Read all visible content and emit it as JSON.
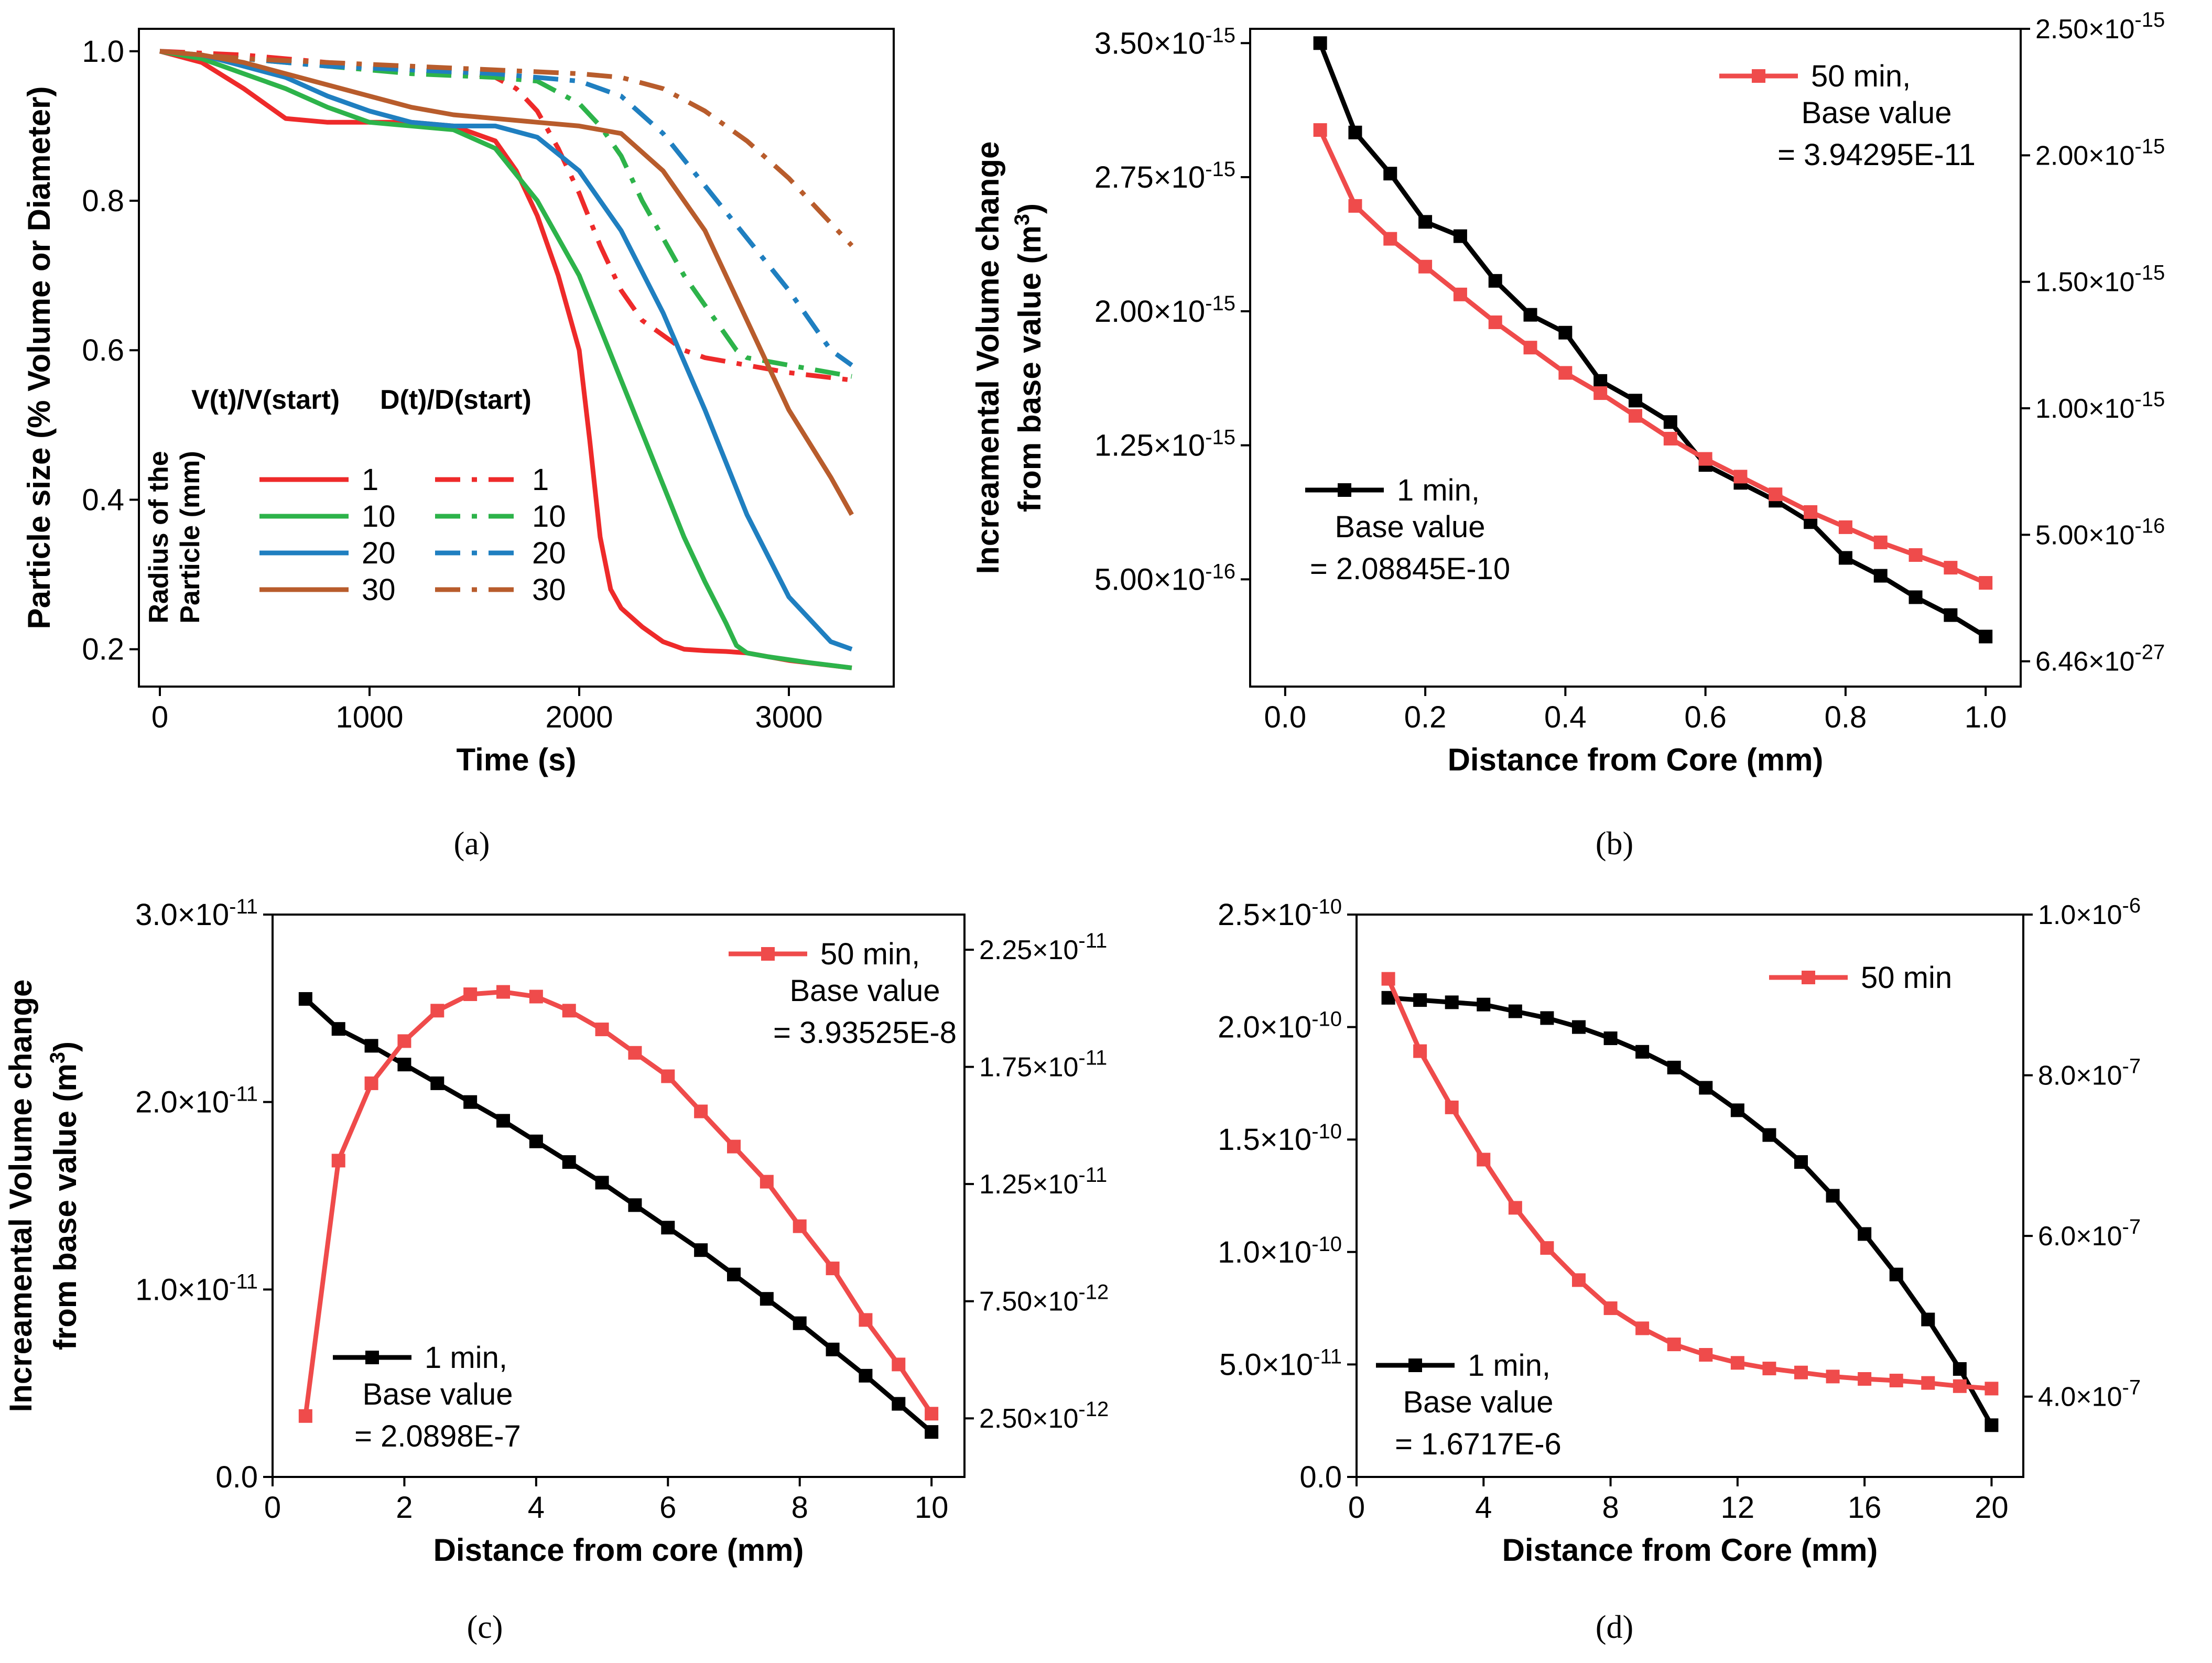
{
  "chart_data": [
    {
      "id": "a",
      "panel_label": "(a)",
      "type": "line",
      "xlabel": "Time (s)",
      "ylabel": "Particle size  (% Volume or Diameter)",
      "xlim": [
        -100,
        3500
      ],
      "ylim": [
        0.15,
        1.03
      ],
      "xticks": [
        0,
        1000,
        2000,
        3000
      ],
      "xtick_labels": [
        "0",
        "1000",
        "2000",
        "3000"
      ],
      "yticks": [
        0.2,
        0.4,
        0.6,
        0.8,
        1.0
      ],
      "ytick_labels": [
        "0.2",
        "0.4",
        "0.6",
        "0.8",
        "1.0"
      ],
      "legend": {
        "col1_title": "V(t)/V(start)",
        "col2_title": "D(t)/D(start)",
        "group_title": [
          "Radius of the",
          "Particle (mm)"
        ],
        "entries": [
          "1",
          "10",
          "20",
          "30"
        ]
      },
      "series": [
        {
          "name": "1",
          "kind": "V(t)/V(start)",
          "style": "solid",
          "color": "#ee2a2a",
          "x": [
            0,
            200,
            400,
            600,
            800,
            1000,
            1200,
            1400,
            1600,
            1700,
            1800,
            1900,
            2000,
            2050,
            2100,
            2150,
            2200,
            2300,
            2400,
            2500,
            2600,
            2700,
            2800,
            3000,
            3300
          ],
          "y": [
            1.0,
            0.985,
            0.95,
            0.91,
            0.905,
            0.905,
            0.905,
            0.9,
            0.88,
            0.84,
            0.78,
            0.7,
            0.6,
            0.48,
            0.35,
            0.28,
            0.255,
            0.23,
            0.21,
            0.2,
            0.198,
            0.197,
            0.195,
            0.185,
            0.175
          ]
        },
        {
          "name": "1",
          "kind": "D(t)/D(start)",
          "style": "dashdot",
          "color": "#ee2a2a",
          "x": [
            0,
            400,
            800,
            1200,
            1500,
            1600,
            1700,
            1800,
            1900,
            2000,
            2100,
            2200,
            2300,
            2400,
            2500,
            2600,
            2700,
            2800,
            3000,
            3300
          ],
          "y": [
            1.0,
            0.995,
            0.985,
            0.975,
            0.97,
            0.965,
            0.95,
            0.92,
            0.87,
            0.81,
            0.74,
            0.68,
            0.64,
            0.62,
            0.6,
            0.59,
            0.585,
            0.58,
            0.57,
            0.56
          ]
        },
        {
          "name": "10",
          "kind": "V(t)/V(start)",
          "style": "solid",
          "color": "#2db34a",
          "x": [
            0,
            200,
            400,
            600,
            800,
            1000,
            1200,
            1400,
            1600,
            1800,
            2000,
            2200,
            2400,
            2500,
            2600,
            2700,
            2750,
            2800,
            2900,
            3100,
            3300
          ],
          "y": [
            1.0,
            0.99,
            0.97,
            0.95,
            0.925,
            0.905,
            0.9,
            0.895,
            0.87,
            0.8,
            0.7,
            0.56,
            0.42,
            0.35,
            0.29,
            0.235,
            0.205,
            0.195,
            0.19,
            0.182,
            0.175
          ]
        },
        {
          "name": "10",
          "kind": "D(t)/D(start)",
          "style": "dashdot",
          "color": "#2db34a",
          "x": [
            0,
            400,
            800,
            1200,
            1600,
            1800,
            2000,
            2100,
            2200,
            2300,
            2400,
            2500,
            2600,
            2700,
            2750,
            2800,
            2900,
            3100,
            3300
          ],
          "y": [
            1.0,
            0.99,
            0.98,
            0.97,
            0.965,
            0.96,
            0.93,
            0.9,
            0.86,
            0.8,
            0.75,
            0.7,
            0.66,
            0.62,
            0.6,
            0.59,
            0.585,
            0.575,
            0.565
          ]
        },
        {
          "name": "20",
          "kind": "V(t)/V(start)",
          "style": "solid",
          "color": "#1f7fc0",
          "x": [
            0,
            200,
            400,
            600,
            800,
            1000,
            1200,
            1400,
            1600,
            1800,
            2000,
            2200,
            2400,
            2600,
            2800,
            3000,
            3200,
            3300
          ],
          "y": [
            1.0,
            0.995,
            0.98,
            0.965,
            0.94,
            0.92,
            0.905,
            0.9,
            0.9,
            0.885,
            0.84,
            0.76,
            0.65,
            0.52,
            0.38,
            0.27,
            0.21,
            0.2
          ]
        },
        {
          "name": "20",
          "kind": "D(t)/D(start)",
          "style": "dashdot",
          "color": "#1f7fc0",
          "x": [
            0,
            400,
            800,
            1200,
            1600,
            2000,
            2200,
            2400,
            2600,
            2800,
            3000,
            3100,
            3200,
            3300
          ],
          "y": [
            1.0,
            0.99,
            0.98,
            0.975,
            0.97,
            0.96,
            0.94,
            0.89,
            0.82,
            0.75,
            0.68,
            0.64,
            0.6,
            0.58
          ]
        },
        {
          "name": "30",
          "kind": "V(t)/V(start)",
          "style": "solid",
          "color": "#b85c2c",
          "x": [
            0,
            200,
            400,
            600,
            800,
            1000,
            1200,
            1400,
            1600,
            1800,
            2000,
            2200,
            2400,
            2600,
            2800,
            3000,
            3200,
            3300
          ],
          "y": [
            1.0,
            0.995,
            0.985,
            0.97,
            0.955,
            0.94,
            0.925,
            0.915,
            0.91,
            0.905,
            0.9,
            0.89,
            0.84,
            0.76,
            0.64,
            0.52,
            0.43,
            0.38
          ]
        },
        {
          "name": "30",
          "kind": "D(t)/D(start)",
          "style": "dashdot",
          "color": "#b85c2c",
          "x": [
            0,
            400,
            800,
            1200,
            1600,
            2000,
            2200,
            2400,
            2600,
            2800,
            3000,
            3200,
            3300
          ],
          "y": [
            1.0,
            0.99,
            0.985,
            0.98,
            0.975,
            0.97,
            0.965,
            0.95,
            0.92,
            0.88,
            0.83,
            0.77,
            0.74
          ]
        }
      ]
    },
    {
      "id": "b",
      "panel_label": "(b)",
      "type": "line",
      "xlabel": "Distance from Core (mm)",
      "ylabel_lines": [
        "Increamental Volume change",
        "from base value (m",
        "3",
        ")"
      ],
      "xlim": [
        -0.05,
        1.05
      ],
      "ylim": [
        -1e-16,
        3.58e-15
      ],
      "xticks": [
        0.0,
        0.2,
        0.4,
        0.6,
        0.8,
        1.0
      ],
      "xtick_labels": [
        "0.0",
        "0.2",
        "0.4",
        "0.6",
        "0.8",
        "1.0"
      ],
      "yticks": [
        5e-16,
        1.25e-15,
        2e-15,
        2.75e-15,
        3.5e-15
      ],
      "ytick_labels": [
        [
          "5.00×10",
          "-16"
        ],
        [
          "1.25×10",
          "-15"
        ],
        [
          "2.00×10",
          "-15"
        ],
        [
          "2.75×10",
          "-15"
        ],
        [
          "3.50×10",
          "-15"
        ]
      ],
      "y2lim": [
        -1e-16,
        2.5e-15
      ],
      "y2ticks": [
        6.46e-27,
        5e-16,
        1e-15,
        1.5e-15,
        2e-15,
        2.5e-15
      ],
      "y2tick_labels": [
        [
          "6.46×10",
          "-27"
        ],
        [
          "5.00×10",
          "-16"
        ],
        [
          "1.00×10",
          "-15"
        ],
        [
          "1.50×10",
          "-15"
        ],
        [
          "2.00×10",
          "-15"
        ],
        [
          "2.50×10",
          "-15"
        ]
      ],
      "series": [
        {
          "name": "1 min",
          "axis": "left",
          "color": "#000000",
          "legend_lines": [
            "1 min,",
            "Base value",
            "= 2.08845E-10"
          ],
          "x": [
            0.05,
            0.1,
            0.15,
            0.2,
            0.25,
            0.3,
            0.35,
            0.4,
            0.45,
            0.5,
            0.55,
            0.6,
            0.65,
            0.7,
            0.75,
            0.8,
            0.85,
            0.9,
            0.95,
            1.0
          ],
          "y": [
            3.5e-15,
            3e-15,
            2.77e-15,
            2.5e-15,
            2.42e-15,
            2.17e-15,
            1.98e-15,
            1.88e-15,
            1.61e-15,
            1.5e-15,
            1.38e-15,
            1.14e-15,
            1.04e-15,
            9.4e-16,
            8.2e-16,
            6.2e-16,
            5.2e-16,
            4e-16,
            3e-16,
            1.8e-16
          ]
        },
        {
          "name": "50 min",
          "axis": "right",
          "color": "#ef4b4b",
          "legend_lines": [
            "50 min,",
            "Base value",
            "= 3.94295E-11"
          ],
          "x": [
            0.05,
            0.1,
            0.15,
            0.2,
            0.25,
            0.3,
            0.35,
            0.4,
            0.45,
            0.5,
            0.55,
            0.6,
            0.65,
            0.7,
            0.75,
            0.8,
            0.85,
            0.9,
            0.95,
            1.0
          ],
          "y": [
            2.1e-15,
            1.8e-15,
            1.67e-15,
            1.56e-15,
            1.45e-15,
            1.34e-15,
            1.24e-15,
            1.14e-15,
            1.06e-15,
            9.7e-16,
            8.8e-16,
            8e-16,
            7.3e-16,
            6.6e-16,
            5.9e-16,
            5.3e-16,
            4.7e-16,
            4.2e-16,
            3.7e-16,
            3.1e-16
          ]
        }
      ]
    },
    {
      "id": "c",
      "panel_label": "(c)",
      "type": "line",
      "xlabel": "Distance from core (mm)",
      "ylabel_lines": [
        "Increamental Volume change",
        "from base value (m",
        "3",
        ")"
      ],
      "xlim": [
        0,
        10.5
      ],
      "ylim": [
        0,
        3e-11
      ],
      "xticks": [
        0,
        2,
        4,
        6,
        8,
        10
      ],
      "xtick_labels": [
        "0",
        "2",
        "4",
        "6",
        "8",
        "10"
      ],
      "yticks": [
        0,
        1e-11,
        2e-11,
        3e-11
      ],
      "ytick_labels": [
        [
          "0.0",
          ""
        ],
        [
          "1.0×10",
          "-11"
        ],
        [
          "2.0×10",
          "-11"
        ],
        [
          "3.0×10",
          "-11"
        ]
      ],
      "y2lim": [
        0,
        2.4e-11
      ],
      "y2ticks": [
        2.5e-12,
        7.5e-12,
        1.25e-11,
        1.75e-11,
        2.25e-11
      ],
      "y2tick_labels": [
        [
          "2.50×10",
          "-12"
        ],
        [
          "7.50×10",
          "-12"
        ],
        [
          "1.25×10",
          "-11"
        ],
        [
          "1.75×10",
          "-11"
        ],
        [
          "2.25×10",
          "-11"
        ]
      ],
      "series": [
        {
          "name": "1 min",
          "axis": "left",
          "color": "#000000",
          "legend_lines": [
            "1 min,",
            "Base value",
            "= 2.0898E-7"
          ],
          "x": [
            0.5,
            1,
            1.5,
            2,
            2.5,
            3,
            3.5,
            4,
            4.5,
            5,
            5.5,
            6,
            6.5,
            7,
            7.5,
            8,
            8.5,
            9,
            9.5,
            10
          ],
          "y": [
            2.55e-11,
            2.39e-11,
            2.3e-11,
            2.2e-11,
            2.1e-11,
            2e-11,
            1.9e-11,
            1.79e-11,
            1.68e-11,
            1.57e-11,
            1.45e-11,
            1.33e-11,
            1.21e-11,
            1.08e-11,
            9.5e-12,
            8.2e-12,
            6.8e-12,
            5.4e-12,
            3.9e-12,
            2.4e-12
          ]
        },
        {
          "name": "50 min",
          "axis": "right",
          "color": "#ef4b4b",
          "legend_lines": [
            "50 min,",
            "Base value",
            "= 3.93525E-8"
          ],
          "x": [
            0.5,
            1,
            1.5,
            2,
            2.5,
            3,
            3.5,
            4,
            4.5,
            5,
            5.5,
            6,
            6.5,
            7,
            7.5,
            8,
            8.5,
            9,
            9.5,
            10
          ],
          "y": [
            2.6e-12,
            1.35e-11,
            1.68e-11,
            1.86e-11,
            1.99e-11,
            2.06e-11,
            2.07e-11,
            2.05e-11,
            1.99e-11,
            1.91e-11,
            1.81e-11,
            1.71e-11,
            1.56e-11,
            1.41e-11,
            1.26e-11,
            1.07e-11,
            8.9e-12,
            6.7e-12,
            4.8e-12,
            2.7e-12
          ]
        }
      ]
    },
    {
      "id": "d",
      "panel_label": "(d)",
      "type": "line",
      "xlabel": "Distance from Core (mm)",
      "xlim": [
        0,
        21
      ],
      "ylim": [
        0,
        2.5e-10
      ],
      "xticks": [
        0,
        4,
        8,
        12,
        16,
        20
      ],
      "xtick_labels": [
        "0",
        "4",
        "8",
        "12",
        "16",
        "20"
      ],
      "yticks": [
        0,
        5e-11,
        1e-10,
        1.5e-10,
        2e-10,
        2.5e-10
      ],
      "ytick_labels": [
        [
          "0.0",
          ""
        ],
        [
          "5.0×10",
          "-11"
        ],
        [
          "1.0×10",
          "-10"
        ],
        [
          "1.5×10",
          "-10"
        ],
        [
          "2.0×10",
          "-10"
        ],
        [
          "2.5×10",
          "-10"
        ]
      ],
      "y2lim": [
        3e-07,
        1e-06
      ],
      "y2ticks": [
        4e-07,
        6e-07,
        8e-07,
        1e-06
      ],
      "y2tick_labels": [
        [
          "4.0×10",
          "-7"
        ],
        [
          "6.0×10",
          "-7"
        ],
        [
          "8.0×10",
          "-7"
        ],
        [
          "1.0×10",
          "-6"
        ]
      ],
      "series": [
        {
          "name": "1 min",
          "axis": "left",
          "color": "#000000",
          "legend_lines": [
            "1 min,",
            "Base value",
            "= 1.6717E-6"
          ],
          "x": [
            1,
            2,
            3,
            4,
            5,
            6,
            7,
            8,
            9,
            10,
            11,
            12,
            13,
            14,
            15,
            16,
            17,
            18,
            19,
            20
          ],
          "y": [
            2.13e-10,
            2.12e-10,
            2.11e-10,
            2.1e-10,
            2.07e-10,
            2.04e-10,
            2e-10,
            1.95e-10,
            1.89e-10,
            1.82e-10,
            1.73e-10,
            1.63e-10,
            1.52e-10,
            1.4e-10,
            1.25e-10,
            1.08e-10,
            9e-11,
            7e-11,
            4.8e-11,
            2.3e-11
          ]
        },
        {
          "name": "50 min",
          "axis": "right",
          "color": "#ef4b4b",
          "legend_lines": [
            "50 min"
          ],
          "x": [
            1,
            2,
            3,
            4,
            5,
            6,
            7,
            8,
            9,
            10,
            11,
            12,
            13,
            14,
            15,
            16,
            17,
            18,
            19,
            20
          ],
          "y": [
            9.2e-07,
            8.3e-07,
            7.6e-07,
            6.95e-07,
            6.35e-07,
            5.85e-07,
            5.45e-07,
            5.1e-07,
            4.85e-07,
            4.65e-07,
            4.52e-07,
            4.42e-07,
            4.35e-07,
            4.3e-07,
            4.25e-07,
            4.22e-07,
            4.2e-07,
            4.17e-07,
            4.13e-07,
            4.1e-07
          ]
        }
      ]
    }
  ]
}
